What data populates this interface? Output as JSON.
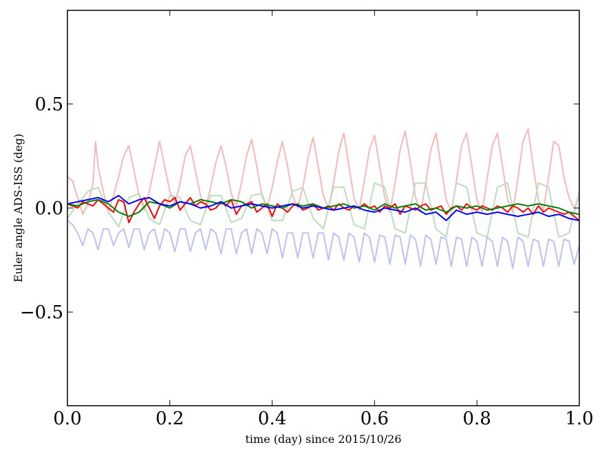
{
  "chart_data": {
    "type": "line",
    "title": "",
    "xlabel": "time (day) since 2015/10/26",
    "ylabel": "Euler angle ADS-ISS (deg)",
    "xlim": [
      0.0,
      1.0
    ],
    "ylim": [
      -0.95,
      0.95
    ],
    "xticks": [
      0.0,
      0.2,
      0.4,
      0.6,
      0.8,
      1.0
    ],
    "xtick_labels": [
      "0.0",
      "0.2",
      "0.4",
      "0.6",
      "0.8",
      "1.0"
    ],
    "yticks": [
      -0.5,
      0.0,
      0.5
    ],
    "ytick_labels": [
      "−0.5",
      "0.0",
      "0.5"
    ],
    "grid": false,
    "legend": "none",
    "series": [
      {
        "color": "#f7b7b7",
        "x": [
          0.0,
          0.01,
          0.02,
          0.03,
          0.04,
          0.05,
          0.055,
          0.06,
          0.07,
          0.08,
          0.09,
          0.1,
          0.11,
          0.12,
          0.13,
          0.14,
          0.15,
          0.16,
          0.17,
          0.18,
          0.19,
          0.2,
          0.21,
          0.22,
          0.23,
          0.24,
          0.25,
          0.26,
          0.27,
          0.28,
          0.29,
          0.3,
          0.31,
          0.32,
          0.33,
          0.34,
          0.35,
          0.36,
          0.37,
          0.38,
          0.39,
          0.4,
          0.41,
          0.42,
          0.43,
          0.44,
          0.45,
          0.46,
          0.47,
          0.48,
          0.49,
          0.5,
          0.51,
          0.52,
          0.53,
          0.54,
          0.55,
          0.56,
          0.57,
          0.58,
          0.59,
          0.6,
          0.61,
          0.62,
          0.63,
          0.64,
          0.65,
          0.66,
          0.67,
          0.68,
          0.69,
          0.7,
          0.71,
          0.72,
          0.73,
          0.74,
          0.75,
          0.76,
          0.77,
          0.78,
          0.79,
          0.8,
          0.81,
          0.82,
          0.83,
          0.84,
          0.85,
          0.86,
          0.87,
          0.88,
          0.89,
          0.9,
          0.91,
          0.92,
          0.93,
          0.94,
          0.95,
          0.96,
          0.97,
          0.98,
          0.99,
          1.0
        ],
        "y": [
          0.15,
          0.13,
          0.05,
          -0.03,
          0.02,
          0.12,
          0.32,
          0.2,
          0.08,
          -0.02,
          0.06,
          0.15,
          0.25,
          0.3,
          0.18,
          0.06,
          -0.01,
          0.08,
          0.2,
          0.32,
          0.2,
          0.08,
          0.02,
          0.12,
          0.25,
          0.3,
          0.18,
          0.06,
          0.0,
          0.1,
          0.22,
          0.3,
          0.2,
          0.07,
          0.01,
          0.12,
          0.25,
          0.33,
          0.2,
          0.06,
          0.0,
          0.1,
          0.22,
          0.32,
          0.2,
          0.06,
          0.0,
          0.1,
          0.24,
          0.34,
          0.2,
          0.06,
          0.0,
          0.12,
          0.27,
          0.36,
          0.2,
          0.05,
          -0.01,
          0.13,
          0.28,
          0.35,
          0.2,
          0.05,
          -0.02,
          0.12,
          0.28,
          0.37,
          0.22,
          0.05,
          -0.02,
          0.12,
          0.28,
          0.36,
          0.2,
          0.04,
          -0.02,
          0.13,
          0.3,
          0.36,
          0.2,
          0.04,
          -0.02,
          0.14,
          0.3,
          0.36,
          0.2,
          0.04,
          -0.02,
          0.14,
          0.32,
          0.38,
          0.2,
          0.04,
          -0.01,
          0.15,
          0.32,
          0.3,
          0.15,
          0.05,
          0.0,
          0.05
        ]
      },
      {
        "color": "#bcdcbc",
        "x": [
          0.0,
          0.02,
          0.04,
          0.06,
          0.08,
          0.1,
          0.12,
          0.14,
          0.16,
          0.18,
          0.2,
          0.22,
          0.24,
          0.26,
          0.28,
          0.3,
          0.32,
          0.34,
          0.36,
          0.38,
          0.4,
          0.42,
          0.44,
          0.46,
          0.48,
          0.5,
          0.52,
          0.54,
          0.56,
          0.58,
          0.6,
          0.62,
          0.64,
          0.66,
          0.68,
          0.7,
          0.72,
          0.74,
          0.76,
          0.78,
          0.8,
          0.82,
          0.84,
          0.86,
          0.88,
          0.9,
          0.92,
          0.94,
          0.96,
          0.98,
          1.0
        ],
        "y": [
          -0.05,
          0.02,
          0.08,
          0.1,
          -0.02,
          -0.09,
          0.05,
          0.07,
          -0.05,
          -0.08,
          0.06,
          0.05,
          -0.06,
          -0.08,
          0.06,
          0.06,
          -0.07,
          -0.05,
          0.06,
          0.07,
          -0.06,
          -0.06,
          0.08,
          0.1,
          -0.05,
          -0.1,
          0.1,
          0.1,
          -0.08,
          -0.1,
          0.12,
          0.1,
          -0.1,
          -0.12,
          0.12,
          0.12,
          -0.1,
          -0.14,
          0.12,
          0.1,
          -0.12,
          -0.14,
          0.1,
          0.12,
          -0.12,
          -0.14,
          0.12,
          0.1,
          -0.14,
          -0.12,
          0.08
        ]
      },
      {
        "color": "#bcc0f5",
        "x": [
          0.0,
          0.01,
          0.02,
          0.03,
          0.04,
          0.05,
          0.06,
          0.07,
          0.08,
          0.09,
          0.1,
          0.11,
          0.12,
          0.13,
          0.14,
          0.15,
          0.16,
          0.17,
          0.18,
          0.19,
          0.2,
          0.21,
          0.22,
          0.23,
          0.24,
          0.25,
          0.26,
          0.27,
          0.28,
          0.29,
          0.3,
          0.31,
          0.32,
          0.33,
          0.34,
          0.35,
          0.36,
          0.37,
          0.38,
          0.39,
          0.4,
          0.41,
          0.42,
          0.43,
          0.44,
          0.45,
          0.46,
          0.47,
          0.48,
          0.49,
          0.5,
          0.51,
          0.52,
          0.53,
          0.54,
          0.55,
          0.56,
          0.57,
          0.58,
          0.59,
          0.6,
          0.61,
          0.62,
          0.63,
          0.64,
          0.65,
          0.66,
          0.67,
          0.68,
          0.69,
          0.7,
          0.71,
          0.72,
          0.73,
          0.74,
          0.75,
          0.76,
          0.77,
          0.78,
          0.79,
          0.8,
          0.81,
          0.82,
          0.83,
          0.84,
          0.85,
          0.86,
          0.87,
          0.88,
          0.89,
          0.9,
          0.91,
          0.92,
          0.93,
          0.94,
          0.95,
          0.96,
          0.97,
          0.98,
          0.99,
          1.0
        ],
        "y": [
          -0.06,
          -0.08,
          -0.12,
          -0.18,
          -0.1,
          -0.12,
          -0.2,
          -0.1,
          -0.1,
          -0.18,
          -0.12,
          -0.1,
          -0.19,
          -0.1,
          -0.1,
          -0.2,
          -0.12,
          -0.1,
          -0.2,
          -0.1,
          -0.12,
          -0.21,
          -0.1,
          -0.1,
          -0.21,
          -0.12,
          -0.1,
          -0.2,
          -0.1,
          -0.12,
          -0.22,
          -0.1,
          -0.1,
          -0.22,
          -0.12,
          -0.1,
          -0.22,
          -0.1,
          -0.12,
          -0.22,
          -0.1,
          -0.12,
          -0.24,
          -0.12,
          -0.12,
          -0.24,
          -0.12,
          -0.12,
          -0.24,
          -0.12,
          -0.12,
          -0.25,
          -0.12,
          -0.14,
          -0.25,
          -0.12,
          -0.14,
          -0.26,
          -0.12,
          -0.14,
          -0.26,
          -0.13,
          -0.14,
          -0.27,
          -0.13,
          -0.14,
          -0.27,
          -0.13,
          -0.15,
          -0.28,
          -0.13,
          -0.15,
          -0.27,
          -0.14,
          -0.15,
          -0.28,
          -0.14,
          -0.15,
          -0.28,
          -0.14,
          -0.16,
          -0.28,
          -0.14,
          -0.16,
          -0.28,
          -0.14,
          -0.16,
          -0.29,
          -0.14,
          -0.16,
          -0.28,
          -0.15,
          -0.16,
          -0.28,
          -0.15,
          -0.16,
          -0.28,
          -0.15,
          -0.16,
          -0.27,
          -0.18
        ]
      },
      {
        "color": "#ff0000",
        "x": [
          0.0,
          0.01,
          0.02,
          0.03,
          0.04,
          0.05,
          0.06,
          0.07,
          0.08,
          0.09,
          0.1,
          0.11,
          0.12,
          0.13,
          0.14,
          0.15,
          0.16,
          0.17,
          0.18,
          0.19,
          0.2,
          0.21,
          0.22,
          0.23,
          0.24,
          0.25,
          0.26,
          0.27,
          0.28,
          0.29,
          0.3,
          0.31,
          0.32,
          0.33,
          0.34,
          0.35,
          0.36,
          0.37,
          0.38,
          0.39,
          0.4,
          0.41,
          0.42,
          0.43,
          0.44,
          0.45,
          0.46,
          0.47,
          0.48,
          0.49,
          0.5,
          0.51,
          0.52,
          0.53,
          0.54,
          0.55,
          0.56,
          0.57,
          0.58,
          0.59,
          0.6,
          0.61,
          0.62,
          0.63,
          0.64,
          0.65,
          0.66,
          0.67,
          0.68,
          0.69,
          0.7,
          0.71,
          0.72,
          0.73,
          0.74,
          0.75,
          0.76,
          0.77,
          0.78,
          0.79,
          0.8,
          0.81,
          0.82,
          0.83,
          0.84,
          0.85,
          0.86,
          0.87,
          0.88,
          0.89,
          0.9,
          0.91,
          0.92,
          0.93,
          0.94,
          0.95,
          0.96,
          0.97,
          0.98,
          0.99,
          1.0
        ],
        "y": [
          0.02,
          0.01,
          0.0,
          0.03,
          0.02,
          0.01,
          0.04,
          0.02,
          0.0,
          -0.02,
          0.04,
          0.03,
          -0.07,
          -0.02,
          0.02,
          0.05,
          0.0,
          -0.05,
          0.01,
          0.04,
          0.03,
          0.05,
          -0.01,
          0.02,
          0.05,
          0.01,
          0.03,
          0.02,
          -0.01,
          0.0,
          0.03,
          0.01,
          0.04,
          -0.03,
          0.01,
          0.02,
          0.03,
          -0.02,
          0.0,
          0.02,
          -0.04,
          0.02,
          0.0,
          -0.02,
          0.01,
          0.02,
          -0.01,
          0.0,
          0.02,
          -0.01,
          0.0,
          0.01,
          -0.01,
          0.02,
          0.0,
          -0.01,
          0.01,
          0.0,
          0.02,
          0.0,
          0.01,
          -0.02,
          0.01,
          0.0,
          0.02,
          -0.03,
          0.01,
          0.0,
          -0.01,
          0.01,
          0.02,
          -0.01,
          0.0,
          0.01,
          -0.03,
          0.0,
          0.01,
          -0.01,
          0.02,
          0.0,
          -0.01,
          0.01,
          0.0,
          -0.01,
          0.01,
          0.0,
          -0.02,
          0.01,
          0.0,
          -0.02,
          0.0,
          -0.03,
          0.01,
          -0.02,
          0.0,
          -0.01,
          -0.02,
          -0.03,
          -0.02,
          -0.04,
          -0.06
        ]
      },
      {
        "color": "#008000",
        "x": [
          0.0,
          0.02,
          0.04,
          0.06,
          0.08,
          0.1,
          0.12,
          0.14,
          0.16,
          0.18,
          0.2,
          0.22,
          0.24,
          0.26,
          0.28,
          0.3,
          0.32,
          0.34,
          0.36,
          0.38,
          0.4,
          0.42,
          0.44,
          0.46,
          0.48,
          0.5,
          0.52,
          0.54,
          0.56,
          0.58,
          0.6,
          0.62,
          0.64,
          0.66,
          0.68,
          0.7,
          0.72,
          0.74,
          0.76,
          0.78,
          0.8,
          0.82,
          0.84,
          0.86,
          0.88,
          0.9,
          0.92,
          0.94,
          0.96,
          0.98,
          1.0
        ],
        "y": [
          0.02,
          0.01,
          0.03,
          0.04,
          0.02,
          -0.02,
          -0.04,
          -0.02,
          0.03,
          0.02,
          0.0,
          0.03,
          0.02,
          0.04,
          0.03,
          0.02,
          0.04,
          0.03,
          0.0,
          0.02,
          0.01,
          0.0,
          0.02,
          0.01,
          0.02,
          0.0,
          0.01,
          0.02,
          0.0,
          0.01,
          -0.01,
          0.02,
          0.0,
          0.01,
          0.02,
          -0.01,
          0.0,
          -0.02,
          0.01,
          0.0,
          0.01,
          -0.01,
          0.0,
          0.01,
          0.02,
          0.01,
          0.02,
          0.01,
          0.0,
          -0.02,
          -0.03
        ]
      },
      {
        "color": "#0000ff",
        "x": [
          0.0,
          0.02,
          0.04,
          0.06,
          0.08,
          0.1,
          0.12,
          0.14,
          0.16,
          0.18,
          0.2,
          0.22,
          0.24,
          0.26,
          0.28,
          0.3,
          0.32,
          0.34,
          0.36,
          0.38,
          0.4,
          0.42,
          0.44,
          0.46,
          0.48,
          0.5,
          0.52,
          0.54,
          0.56,
          0.58,
          0.6,
          0.62,
          0.64,
          0.66,
          0.68,
          0.7,
          0.72,
          0.74,
          0.76,
          0.78,
          0.8,
          0.82,
          0.84,
          0.86,
          0.88,
          0.9,
          0.92,
          0.94,
          0.96,
          0.98,
          1.0
        ],
        "y": [
          0.02,
          0.03,
          0.04,
          0.05,
          0.03,
          0.06,
          0.02,
          0.04,
          0.05,
          0.02,
          0.01,
          0.03,
          0.02,
          0.0,
          0.01,
          0.03,
          0.0,
          0.01,
          0.02,
          0.01,
          0.0,
          0.01,
          0.02,
          0.0,
          0.01,
          0.0,
          -0.01,
          0.0,
          0.01,
          -0.01,
          -0.02,
          0.0,
          -0.01,
          -0.02,
          0.0,
          -0.03,
          -0.02,
          -0.06,
          -0.01,
          -0.03,
          -0.02,
          -0.03,
          -0.02,
          -0.03,
          -0.04,
          -0.03,
          -0.02,
          -0.04,
          -0.03,
          -0.05,
          -0.06
        ]
      }
    ]
  }
}
